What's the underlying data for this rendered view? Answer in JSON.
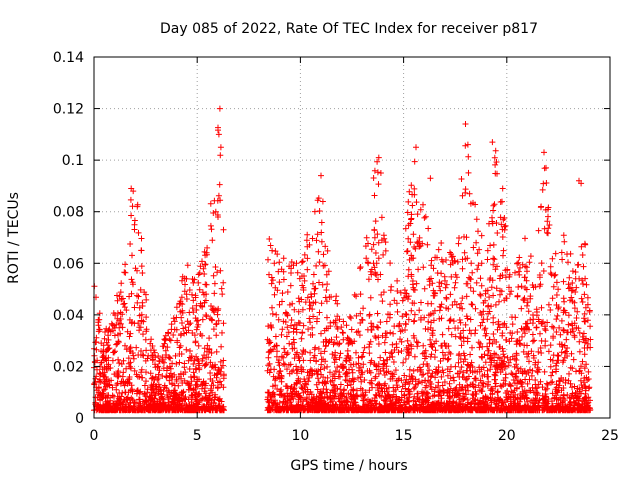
{
  "chart_data": {
    "type": "scatter",
    "title": "Day 085 of 2022, Rate Of TEC Index for receiver p817",
    "xlabel": "GPS time / hours",
    "ylabel": "ROTI / TECUs",
    "xlim": [
      0,
      25
    ],
    "ylim": [
      0,
      0.14
    ],
    "x_ticks": [
      0,
      5,
      10,
      15,
      20,
      25
    ],
    "x_tick_labels": [
      "0",
      "5",
      "10",
      "15",
      "20",
      "25"
    ],
    "y_ticks": [
      0,
      0.02,
      0.04,
      0.06,
      0.08,
      0.1,
      0.12,
      0.14
    ],
    "y_tick_labels": [
      "0",
      "0.02",
      "0.04",
      "0.06",
      "0.08",
      "0.1",
      "0.12",
      "0.14"
    ],
    "grid": true,
    "marker": "+",
    "color": "#ff0000",
    "data_gap_hours": [
      6.3,
      8.4
    ],
    "envelope": [
      [
        0.0,
        0.05
      ],
      [
        0.5,
        0.03
      ],
      [
        1.0,
        0.04
      ],
      [
        1.5,
        0.06
      ],
      [
        1.8,
        0.09
      ],
      [
        2.2,
        0.08
      ],
      [
        2.6,
        0.04
      ],
      [
        3.0,
        0.02
      ],
      [
        3.5,
        0.03
      ],
      [
        4.0,
        0.04
      ],
      [
        4.5,
        0.06
      ],
      [
        5.0,
        0.05
      ],
      [
        5.5,
        0.07
      ],
      [
        5.9,
        0.1
      ],
      [
        6.1,
        0.12
      ],
      [
        6.3,
        0.07
      ],
      [
        8.4,
        0.07
      ],
      [
        9.0,
        0.06
      ],
      [
        9.5,
        0.06
      ],
      [
        10.0,
        0.06
      ],
      [
        10.5,
        0.08
      ],
      [
        11.0,
        0.09
      ],
      [
        11.5,
        0.05
      ],
      [
        12.0,
        0.04
      ],
      [
        12.5,
        0.04
      ],
      [
        13.0,
        0.06
      ],
      [
        13.5,
        0.09
      ],
      [
        13.8,
        0.1
      ],
      [
        14.2,
        0.06
      ],
      [
        14.8,
        0.05
      ],
      [
        15.3,
        0.09
      ],
      [
        15.6,
        0.105
      ],
      [
        16.0,
        0.08
      ],
      [
        16.5,
        0.06
      ],
      [
        17.0,
        0.07
      ],
      [
        17.5,
        0.06
      ],
      [
        18.0,
        0.114
      ],
      [
        18.5,
        0.08
      ],
      [
        19.0,
        0.06
      ],
      [
        19.3,
        0.107
      ],
      [
        19.8,
        0.089
      ],
      [
        20.2,
        0.05
      ],
      [
        20.6,
        0.06
      ],
      [
        21.0,
        0.07
      ],
      [
        21.4,
        0.06
      ],
      [
        21.8,
        0.103
      ],
      [
        22.3,
        0.06
      ],
      [
        22.8,
        0.07
      ],
      [
        23.2,
        0.06
      ],
      [
        23.6,
        0.092
      ],
      [
        24.0,
        0.04
      ]
    ],
    "spikes": [
      [
        1.8,
        0.089
      ],
      [
        1.9,
        0.088
      ],
      [
        2.1,
        0.082
      ],
      [
        5.9,
        0.08
      ],
      [
        6.05,
        0.11
      ],
      [
        6.1,
        0.12
      ],
      [
        6.15,
        0.105
      ],
      [
        11.0,
        0.094
      ],
      [
        13.8,
        0.101
      ],
      [
        13.9,
        0.095
      ],
      [
        15.6,
        0.105
      ],
      [
        16.3,
        0.093
      ],
      [
        18.0,
        0.114
      ],
      [
        18.2,
        0.087
      ],
      [
        19.3,
        0.107
      ],
      [
        19.8,
        0.089
      ],
      [
        21.8,
        0.103
      ],
      [
        21.9,
        0.097
      ],
      [
        23.5,
        0.092
      ],
      [
        23.6,
        0.091
      ]
    ]
  }
}
